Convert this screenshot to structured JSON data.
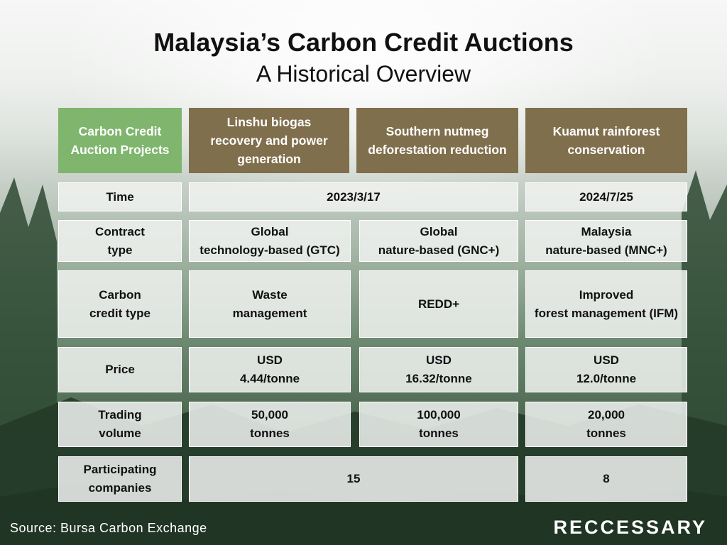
{
  "title": "Malaysia’s Carbon Credit Auctions",
  "subtitle": "A Historical Overview",
  "table": {
    "headers": [
      "Carbon Credit\nAuction Projects",
      "Linshu biogas\nrecovery and power\ngeneration",
      "Southern nutmeg\ndeforestation reduction",
      "Kuamut rainforest\nconservation"
    ],
    "rows": [
      {
        "label": "Time",
        "values": [
          "2023/3/17",
          "2024/7/25"
        ]
      },
      {
        "label": "Contract\ntype",
        "values": [
          "Global\ntechnology-based (GTC)",
          "Global\nnature-based (GNC+)",
          "Malaysia\nnature-based (MNC+)"
        ]
      },
      {
        "label": "Carbon\ncredit type",
        "values": [
          "Waste\nmanagement",
          "REDD+",
          "Improved\nforest management (IFM)"
        ]
      },
      {
        "label": "Price",
        "values": [
          "USD\n4.44/tonne",
          "USD\n16.32/tonne",
          "USD\n12.0/tonne"
        ]
      },
      {
        "label": "Trading\nvolume",
        "values": [
          "50,000\ntonnes",
          "100,000\ntonnes",
          "20,000\ntonnes"
        ]
      },
      {
        "label": "Participating\ncompanies",
        "values": [
          "15",
          "8"
        ]
      }
    ]
  },
  "source": "Source: Bursa Carbon Exchange",
  "logo": "RECCESSARY",
  "colors": {
    "header_brown": "#806f4c",
    "header_green": "#7fb56d",
    "cell_background": "#f0f2f0"
  }
}
